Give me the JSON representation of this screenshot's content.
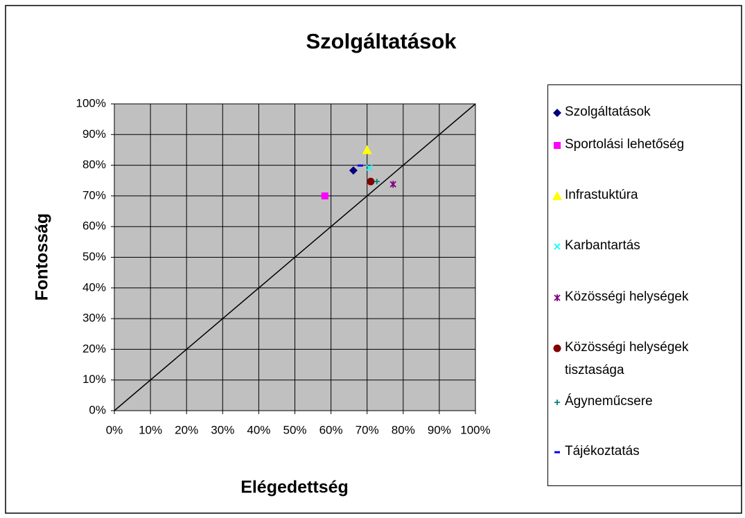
{
  "chart_data": {
    "type": "scatter",
    "title": "Szolgáltatások",
    "x_label": "Elégedettség",
    "y_label": "Fontosság",
    "xlim": [
      0,
      100
    ],
    "ylim": [
      0,
      100
    ],
    "xticks": [
      {
        "value": 0,
        "label": "0%"
      },
      {
        "value": 10,
        "label": "10%"
      },
      {
        "value": 20,
        "label": "20%"
      },
      {
        "value": 30,
        "label": "30%"
      },
      {
        "value": 40,
        "label": "40%"
      },
      {
        "value": 50,
        "label": "50%"
      },
      {
        "value": 60,
        "label": "60%"
      },
      {
        "value": 70,
        "label": "70%"
      },
      {
        "value": 80,
        "label": "80%"
      },
      {
        "value": 90,
        "label": "90%"
      },
      {
        "value": 100,
        "label": "100%"
      }
    ],
    "yticks": [
      {
        "value": 0,
        "label": "0%"
      },
      {
        "value": 10,
        "label": "10%"
      },
      {
        "value": 20,
        "label": "20%"
      },
      {
        "value": 30,
        "label": "30%"
      },
      {
        "value": 40,
        "label": "40%"
      },
      {
        "value": 50,
        "label": "50%"
      },
      {
        "value": 60,
        "label": "60%"
      },
      {
        "value": 70,
        "label": "70%"
      },
      {
        "value": 80,
        "label": "80%"
      },
      {
        "value": 90,
        "label": "90%"
      },
      {
        "value": 100,
        "label": "100%"
      }
    ],
    "grid": true,
    "background": "#c0c0c0",
    "legend": "right",
    "series": [
      {
        "name": "Szolgáltatások",
        "color": "#000080",
        "marker": "diamond",
        "x": [
          66.2
        ],
        "values": [
          78.3
        ]
      },
      {
        "name": "Sportolási lehetőség",
        "color": "#ff00ff",
        "marker": "square",
        "x": [
          58.3
        ],
        "values": [
          70.0
        ]
      },
      {
        "name": "Infrastuktúra",
        "color": "#ffff00",
        "marker": "triangle",
        "x": [
          70.0
        ],
        "values": [
          85.0
        ]
      },
      {
        "name": "Karbantartás",
        "color": "#00ffff",
        "marker": "x",
        "x": [
          70.6
        ],
        "values": [
          79.2
        ]
      },
      {
        "name": "Közösségi helységek",
        "color": "#800080",
        "marker": "star",
        "x": [
          77.2
        ],
        "values": [
          73.8
        ]
      },
      {
        "name": "Közösségi helységek tisztasága",
        "color": "#800000",
        "marker": "circle",
        "x": [
          71.0
        ],
        "values": [
          74.7
        ]
      },
      {
        "name": "Ágyneműcsere",
        "color": "#008080",
        "marker": "plus",
        "x": [
          72.7
        ],
        "values": [
          74.7
        ]
      },
      {
        "name": "Tájékoztatás",
        "color": "#0000ff",
        "marker": "dash",
        "x": [
          68.1
        ],
        "values": [
          79.9
        ]
      }
    ]
  }
}
